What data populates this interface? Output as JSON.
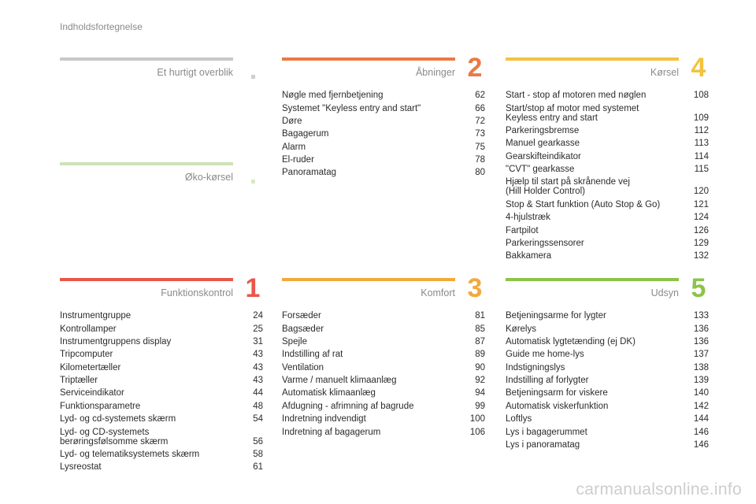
{
  "page_title": "Indholdsfortegnelse",
  "watermark": "carmanualsonline.info",
  "sections": {
    "overview": {
      "title": "Et hurtigt overblik",
      "color": "#c8c8c8",
      "dot": "#cfcfcf"
    },
    "eco": {
      "title": "Øko-kørsel",
      "color": "#cde3b8",
      "dot": "#d6e8c3"
    },
    "s1": {
      "title": "Funktionskontrol",
      "number": "1",
      "color": "#e8574a",
      "entries": [
        {
          "t": "Instrumentgruppe",
          "p": "24"
        },
        {
          "t": "Kontrollamper",
          "p": "25"
        },
        {
          "t": "Instrumentgruppens display",
          "p": "31"
        },
        {
          "t": "Tripcomputer",
          "p": "43"
        },
        {
          "t": "Kilometertæller",
          "p": "43"
        },
        {
          "t": "Triptæller",
          "p": "43"
        },
        {
          "t": "Serviceindikator",
          "p": "44"
        },
        {
          "t": "Funktionsparametre",
          "p": "48"
        },
        {
          "t": "Lyd- og cd-systemets skærm",
          "p": "54"
        },
        {
          "t": "Lyd- og CD-systemets\nberøringsfølsomme skærm",
          "p": "56"
        },
        {
          "t": "Lyd- og telematiksystemets skærm",
          "p": "58"
        },
        {
          "t": "Lysreostat",
          "p": "61"
        }
      ]
    },
    "s2": {
      "title": "Åbninger",
      "number": "2",
      "color": "#ea7a44",
      "entries": [
        {
          "t": "Nøgle med fjernbetjening",
          "p": "62"
        },
        {
          "t": "Systemet \"Keyless entry and start\"",
          "p": "66"
        },
        {
          "t": "Døre",
          "p": "72"
        },
        {
          "t": "Bagagerum",
          "p": "73"
        },
        {
          "t": "Alarm",
          "p": "75"
        },
        {
          "t": "El-ruder",
          "p": "78"
        },
        {
          "t": "Panoramatag",
          "p": "80"
        }
      ]
    },
    "s3": {
      "title": "Komfort",
      "number": "3",
      "color": "#f2a93c",
      "entries": [
        {
          "t": "Forsæder",
          "p": "81"
        },
        {
          "t": "Bagsæder",
          "p": "85"
        },
        {
          "t": "Spejle",
          "p": "87"
        },
        {
          "t": "Indstilling af rat",
          "p": "89"
        },
        {
          "t": "Ventilation",
          "p": "90"
        },
        {
          "t": "Varme / manuelt klimaanlæg",
          "p": "92"
        },
        {
          "t": "Automatisk klimaanlæg",
          "p": "94"
        },
        {
          "t": "Afdugning - afrimning af bagrude",
          "p": "99"
        },
        {
          "t": "Indretning indvendigt",
          "p": "100"
        },
        {
          "t": "Indretning af bagagerum",
          "p": "106"
        }
      ]
    },
    "s4": {
      "title": "Kørsel",
      "number": "4",
      "color": "#f3c33f",
      "entries": [
        {
          "t": "Start - stop af motoren med nøglen",
          "p": "108"
        },
        {
          "t": "Start/stop af motor med systemet\nKeyless entry and start",
          "p": "109"
        },
        {
          "t": "Parkeringsbremse",
          "p": "112"
        },
        {
          "t": "Manuel gearkasse",
          "p": "113"
        },
        {
          "t": "Gearskifteindikator",
          "p": "114"
        },
        {
          "t": "\"CVT\" gearkasse",
          "p": "115"
        },
        {
          "t": "Hjælp til start på skrånende vej\n(Hill Holder Control)",
          "p": "120"
        },
        {
          "t": "Stop & Start funktion (Auto Stop & Go)",
          "p": "121"
        },
        {
          "t": "4-hjulstræk",
          "p": "124"
        },
        {
          "t": "Fartpilot",
          "p": "126"
        },
        {
          "t": "Parkeringssensorer",
          "p": "129"
        },
        {
          "t": "Bakkamera",
          "p": "132"
        }
      ]
    },
    "s5": {
      "title": "Udsyn",
      "number": "5",
      "color": "#8cc34b",
      "entries": [
        {
          "t": "Betjeningsarme for lygter",
          "p": "133"
        },
        {
          "t": "Kørelys",
          "p": "136"
        },
        {
          "t": "Automatisk lygtetænding (ej DK)",
          "p": "136"
        },
        {
          "t": "Guide me home-lys",
          "p": "137"
        },
        {
          "t": "Indstigningslys",
          "p": "138"
        },
        {
          "t": "Indstilling af forlygter",
          "p": "139"
        },
        {
          "t": "Betjeningsarm for viskere",
          "p": "140"
        },
        {
          "t": "Automatisk viskerfunktion",
          "p": "142"
        },
        {
          "t": "Loftlys",
          "p": "144"
        },
        {
          "t": "Lys i bagagerummet",
          "p": "146"
        },
        {
          "t": "Lys i panoramatag",
          "p": "146"
        }
      ]
    }
  }
}
